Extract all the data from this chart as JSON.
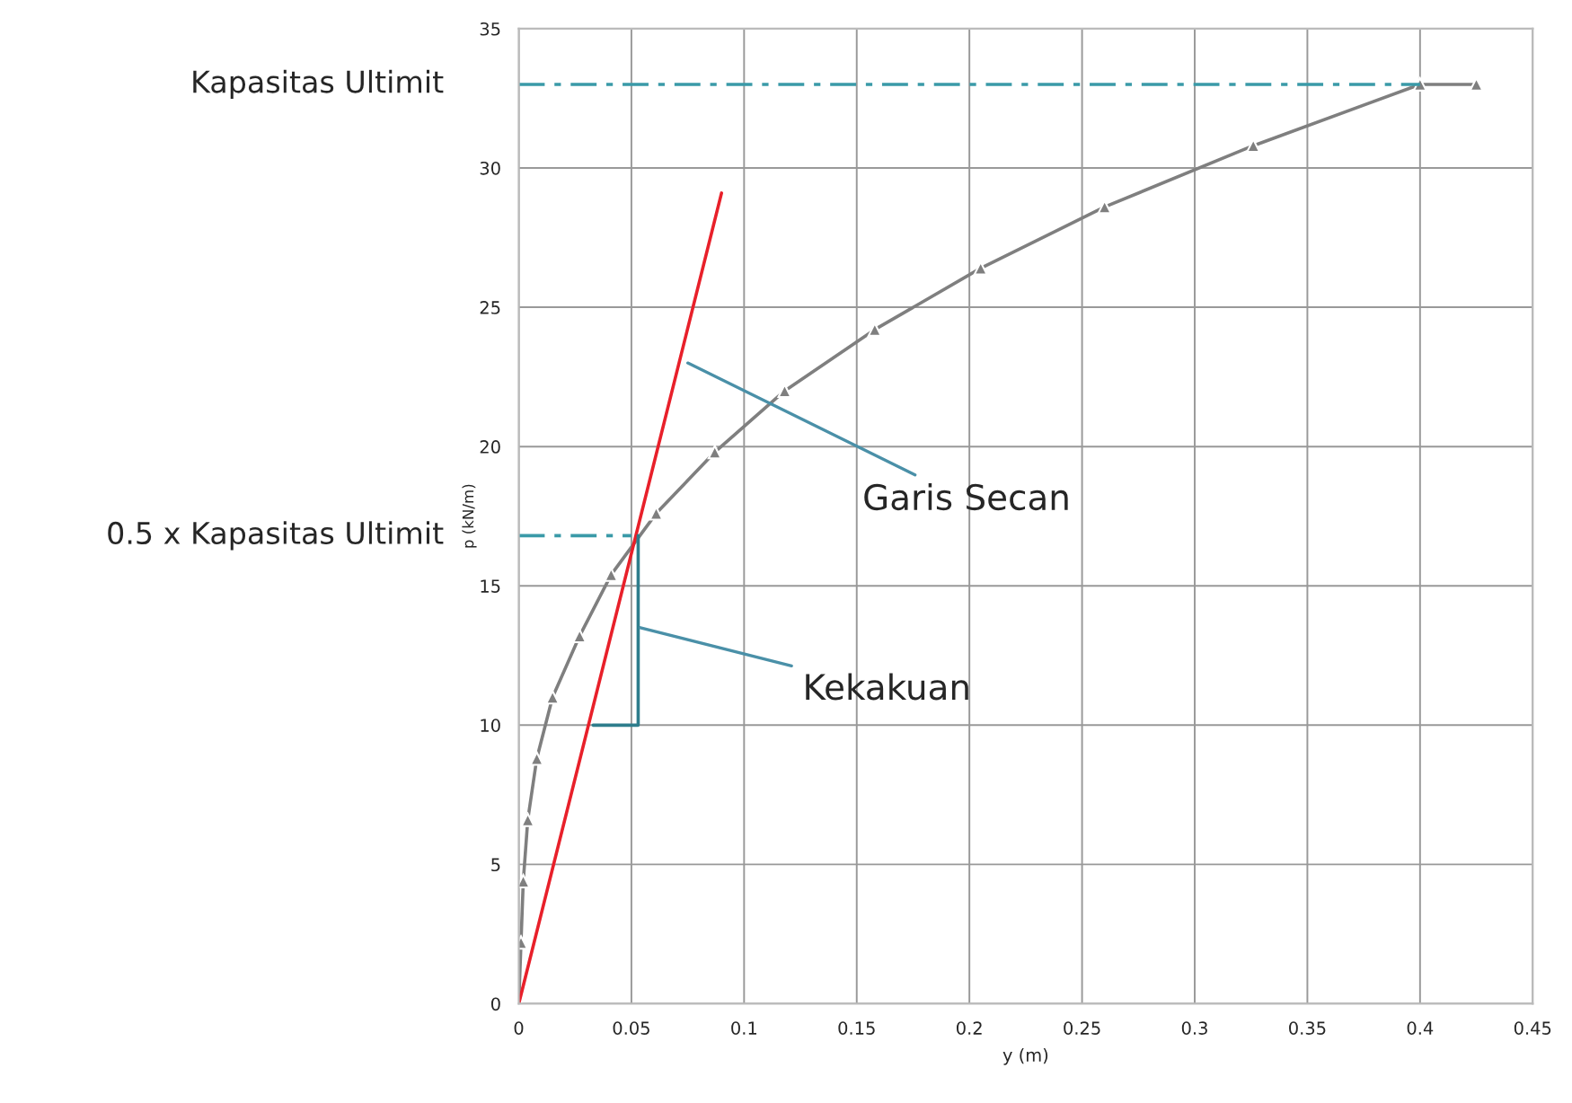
{
  "chart_data": {
    "type": "line",
    "xlabel": "y (m)",
    "ylabel": "p (kN/m)",
    "xlim": [
      0,
      0.45
    ],
    "xticks": [
      0,
      0.05,
      0.1,
      0.15,
      0.2,
      0.25,
      0.3,
      0.35,
      0.4,
      0.45
    ],
    "ylim": [
      0,
      35
    ],
    "yticks": [
      0,
      5,
      10,
      15,
      20,
      25,
      30,
      35
    ],
    "grid": true,
    "series": [
      {
        "color": "#7f7f7f",
        "marker": "triangle",
        "line_style": "solid",
        "x": [
          0,
          0.001,
          0.002,
          0.004,
          0.008,
          0.015,
          0.027,
          0.041,
          0.061,
          0.087,
          0.118,
          0.158,
          0.205,
          0.26,
          0.326,
          0.4,
          0.425
        ],
        "values": [
          0,
          2.2,
          4.4,
          6.6,
          8.8,
          11,
          13.2,
          15.4,
          17.6,
          19.8,
          22,
          24.2,
          26.4,
          28.6,
          30.8,
          33,
          33
        ]
      },
      {
        "color": "#e8202a",
        "marker": "none",
        "line_style": "solid",
        "x": [
          0,
          0.09
        ],
        "values": [
          0,
          29.1
        ]
      },
      {
        "color": "#2e7d8c",
        "marker": "none",
        "line_style": "solid",
        "x": [
          0.033,
          0.053,
          0.053
        ],
        "values": [
          10,
          10,
          16.8
        ]
      },
      {
        "name": "Kapasitas Ultimit",
        "color": "#3a9aa8",
        "marker": "none",
        "line_style": "dashed",
        "x": [
          0,
          0.4
        ],
        "values": [
          33,
          33
        ]
      },
      {
        "name": "0.5 x Kapasitas Ultimit",
        "color": "#3a9aa8",
        "marker": "none",
        "line_style": "dashed",
        "x": [
          0,
          0.05
        ],
        "values": [
          16.8,
          16.8
        ]
      }
    ],
    "annotations": [
      {
        "text": "Garis Secan",
        "x": 0.075,
        "y": 23
      },
      {
        "text": "Kekakuan",
        "x": 0.054,
        "y": 13.5
      }
    ]
  }
}
